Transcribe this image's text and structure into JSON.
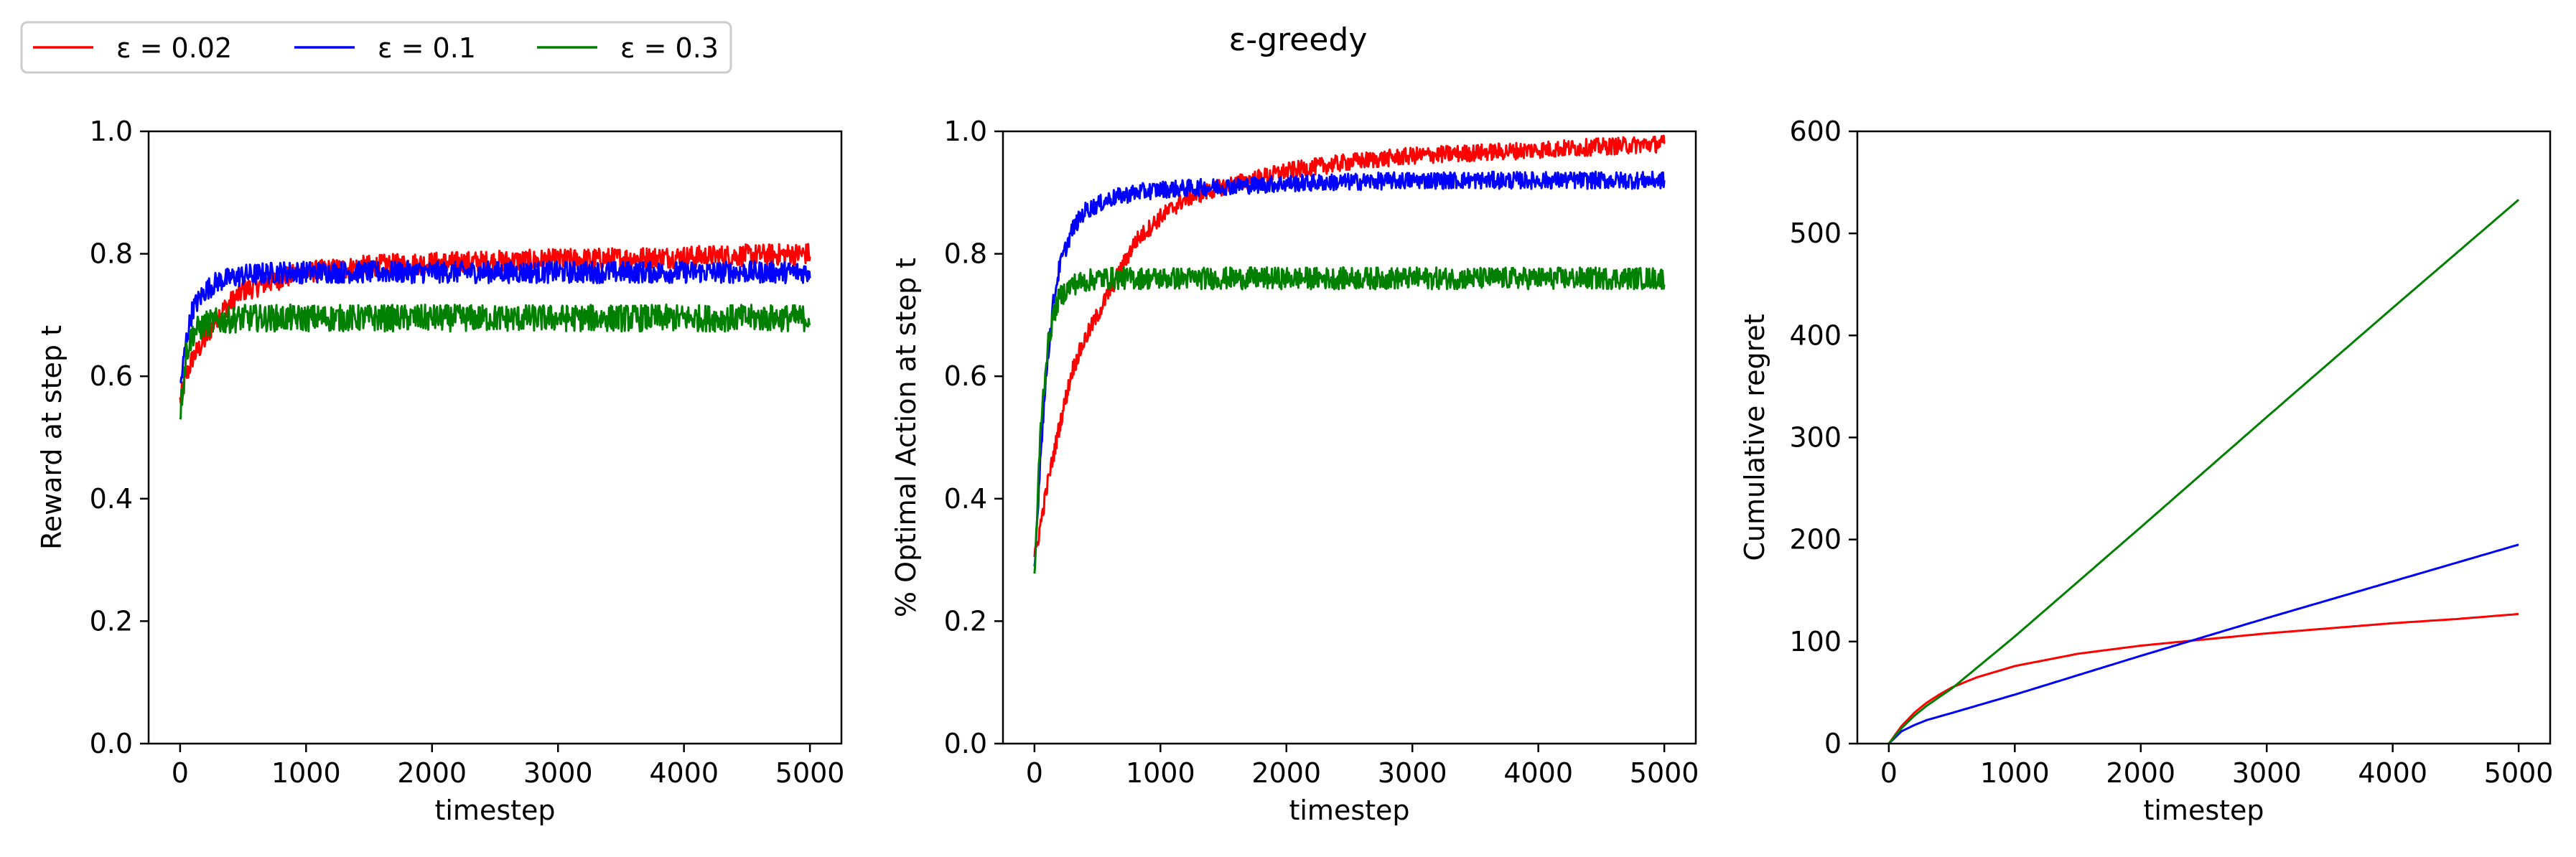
{
  "figure": {
    "title": "ε-greedy",
    "legend": {
      "placement": "top-left",
      "entries": [
        {
          "label": "ε = 0.02",
          "color": "#ff0000"
        },
        {
          "label": "ε = 0.1",
          "color": "#0000ff"
        },
        {
          "label": "ε = 0.3",
          "color": "#008000"
        }
      ]
    }
  },
  "chart_data": [
    {
      "type": "line",
      "xlabel": "timestep",
      "ylabel": "Reward at step t",
      "xlim": [
        -250,
        5250
      ],
      "ylim": [
        0,
        1
      ],
      "xticks": [
        "0",
        "1000",
        "2000",
        "3000",
        "4000",
        "5000"
      ],
      "yticks": [
        "0.0",
        "0.2",
        "0.4",
        "0.6",
        "0.8",
        "1.0"
      ],
      "grid": false,
      "series": [
        {
          "name": "ε = 0.02",
          "color": "#ff0000",
          "x": [
            0,
            50,
            100,
            200,
            300,
            500,
            800,
            1000,
            1500,
            2000,
            3000,
            4000,
            5000
          ],
          "y": [
            0.56,
            0.6,
            0.63,
            0.66,
            0.7,
            0.74,
            0.76,
            0.77,
            0.78,
            0.785,
            0.79,
            0.795,
            0.8
          ]
        },
        {
          "name": "ε = 0.1",
          "color": "#0000ff",
          "x": [
            0,
            50,
            100,
            200,
            300,
            500,
            800,
            1000,
            1500,
            2000,
            3000,
            4000,
            5000
          ],
          "y": [
            0.58,
            0.66,
            0.71,
            0.74,
            0.755,
            0.765,
            0.77,
            0.77,
            0.77,
            0.77,
            0.77,
            0.77,
            0.77
          ]
        },
        {
          "name": "ε = 0.3",
          "color": "#008000",
          "x": [
            0,
            50,
            100,
            200,
            300,
            500,
            800,
            1000,
            1500,
            2000,
            3000,
            4000,
            5000
          ],
          "y": [
            0.54,
            0.64,
            0.67,
            0.685,
            0.69,
            0.695,
            0.695,
            0.695,
            0.695,
            0.695,
            0.695,
            0.695,
            0.695
          ]
        }
      ]
    },
    {
      "type": "line",
      "xlabel": "timestep",
      "ylabel": "% Optimal Action at step t",
      "xlim": [
        -250,
        5250
      ],
      "ylim": [
        0,
        1
      ],
      "xticks": [
        "0",
        "1000",
        "2000",
        "3000",
        "4000",
        "5000"
      ],
      "yticks": [
        "0.0",
        "0.2",
        "0.4",
        "0.6",
        "0.8",
        "1.0"
      ],
      "grid": false,
      "series": [
        {
          "name": "ε = 0.02",
          "color": "#ff0000",
          "x": [
            0,
            100,
            200,
            300,
            400,
            500,
            600,
            700,
            800,
            1000,
            1200,
            1500,
            2000,
            2500,
            3000,
            4000,
            5000
          ],
          "y": [
            0.3,
            0.42,
            0.52,
            0.61,
            0.66,
            0.7,
            0.74,
            0.78,
            0.82,
            0.86,
            0.89,
            0.91,
            0.935,
            0.95,
            0.96,
            0.97,
            0.98
          ]
        },
        {
          "name": "ε = 0.1",
          "color": "#0000ff",
          "x": [
            0,
            50,
            100,
            150,
            200,
            300,
            400,
            600,
            800,
            1000,
            1500,
            2000,
            3000,
            4000,
            5000
          ],
          "y": [
            0.28,
            0.48,
            0.62,
            0.72,
            0.78,
            0.84,
            0.87,
            0.89,
            0.9,
            0.905,
            0.91,
            0.915,
            0.92,
            0.92,
            0.92
          ]
        },
        {
          "name": "ε = 0.3",
          "color": "#008000",
          "x": [
            0,
            50,
            100,
            150,
            200,
            300,
            500,
            800,
            1000,
            2000,
            3000,
            4000,
            5000
          ],
          "y": [
            0.27,
            0.52,
            0.64,
            0.7,
            0.73,
            0.75,
            0.76,
            0.76,
            0.76,
            0.76,
            0.76,
            0.76,
            0.76
          ]
        }
      ]
    },
    {
      "type": "line",
      "xlabel": "timestep",
      "ylabel": "Cumulative regret",
      "xlim": [
        -250,
        5250
      ],
      "ylim": [
        0,
        600
      ],
      "xticks": [
        "0",
        "1000",
        "2000",
        "3000",
        "4000",
        "5000"
      ],
      "yticks": [
        "0",
        "100",
        "200",
        "300",
        "400",
        "500",
        "600"
      ],
      "grid": false,
      "series": [
        {
          "name": "ε = 0.02",
          "color": "#ff0000",
          "x": [
            0,
            100,
            200,
            300,
            400,
            500,
            700,
            1000,
            1500,
            2000,
            2500,
            3000,
            3500,
            4000,
            4500,
            5000
          ],
          "y": [
            0,
            17,
            30,
            40,
            48,
            55,
            65,
            76,
            88,
            96,
            102,
            108,
            113,
            118,
            122,
            127
          ]
        },
        {
          "name": "ε = 0.1",
          "color": "#0000ff",
          "x": [
            0,
            100,
            200,
            300,
            500,
            1000,
            2000,
            3000,
            4000,
            5000
          ],
          "y": [
            0,
            12,
            18,
            23,
            30,
            48,
            86,
            123,
            159,
            195
          ]
        },
        {
          "name": "ε = 0.3",
          "color": "#008000",
          "x": [
            0,
            100,
            200,
            300,
            500,
            1000,
            2000,
            3000,
            4000,
            5000
          ],
          "y": [
            0,
            15,
            27,
            37,
            54,
            105,
            212,
            320,
            427,
            533
          ]
        }
      ]
    }
  ]
}
